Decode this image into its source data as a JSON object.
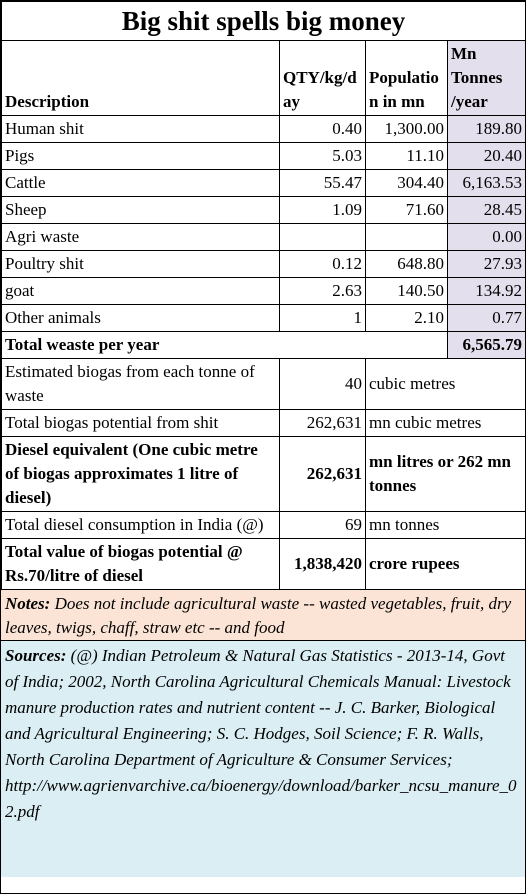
{
  "title": "Big shit spells big money",
  "table": {
    "header": [
      "Description",
      "QTY/kg/day",
      "Population in mn",
      "Mn Tonnes /year"
    ],
    "rows": [
      {
        "label": "Human shit",
        "qty": "0.40",
        "population": "1,300.00",
        "tonnes": "189.80"
      },
      {
        "label": "Pigs",
        "qty": "5.03",
        "population": "11.10",
        "tonnes": "20.40"
      },
      {
        "label": "Cattle",
        "qty": "55.47",
        "population": "304.40",
        "tonnes": "6,163.53"
      },
      {
        "label": "Sheep",
        "qty": "1.09",
        "population": "71.60",
        "tonnes": "28.45"
      },
      {
        "label": "Agri waste",
        "tonnes": "0.00"
      },
      {
        "label": "Poultry shit",
        "qty": "0.12",
        "population": "648.80",
        "tonnes": "27.93"
      },
      {
        "label": "goat",
        "qty": "2.63",
        "population": "140.50",
        "tonnes": "134.92"
      },
      {
        "label": "Other animals",
        "qty": "1",
        "population": "2.10",
        "tonnes": "0.77"
      }
    ],
    "total": {
      "label": "Total weaste per year",
      "tonnes": "6,565.79"
    },
    "summary": [
      {
        "label": "Estimated biogas from each tonne of waste",
        "value": "40",
        "unit": "cubic metres"
      },
      {
        "label": "Total biogas potential from shit",
        "value": "262,631",
        "unit": "mn cubic metres"
      },
      {
        "label": "Diesel equivalent (One cubic metre of biogas approximates 1 litre of diesel)",
        "value": "262,631",
        "unit": "mn litres or 262 mn tonnes",
        "bold": true
      },
      {
        "label": "Total diesel consumption in India (@)",
        "value": "69",
        "unit": "mn tonnes"
      },
      {
        "label": "Total value of biogas potential @ Rs.70/litre of diesel",
        "value": "1,838,420",
        "unit": "crore rupees",
        "bold": true
      }
    ]
  },
  "notes": {
    "label": "Notes:",
    "text": "Does not include agricultural waste -- wasted vegetables, fruit, dry leaves, twigs, chaff, straw etc -- and food"
  },
  "sources": {
    "label": "Sources:",
    "text": "(@) Indian Petroleum & Natural Gas Statistics - 2013-14, Govt of India; 2002, North Carolina Agricultural Chemicals Manual: Livestock manure production rates and nutrient content -- J. C. Barker, Biological and Agricultural Engineering; S. C. Hodges, Soil Science; F. R. Walls, North Carolina Department of Agriculture & Consumer Services; http://www.agrienvarchive.ca/bioenergy/download/barker_ncsu_manure_02.pdf"
  }
}
